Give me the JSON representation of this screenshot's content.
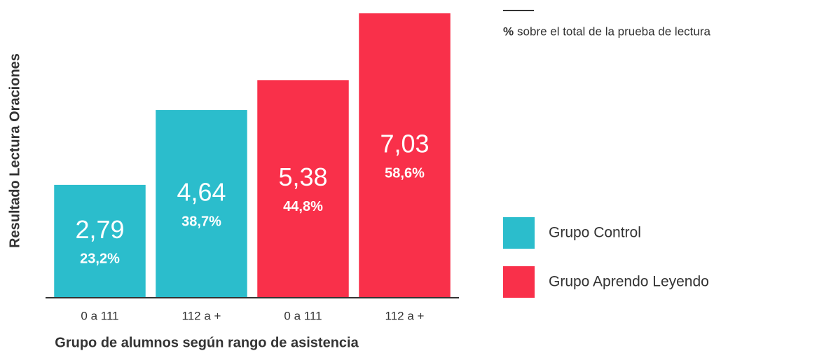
{
  "chart_data": {
    "type": "bar",
    "y_label": "Resultado Lectura Oraciones",
    "x_label": "Grupo de alumnos según rango de asistencia",
    "categories": [
      "0 a 111",
      "112 a +",
      "0 a 111",
      "112 a +"
    ],
    "series": [
      {
        "name": "Grupo Control",
        "color": "#2bbdcc",
        "values": [
          2.79,
          4.64,
          null,
          null
        ],
        "value_labels": [
          "2,79",
          "4,64",
          null,
          null
        ],
        "percents": [
          23.2,
          38.7,
          null,
          null
        ],
        "percent_labels": [
          "23,2%",
          "38,7%",
          null,
          null
        ]
      },
      {
        "name": "Grupo Aprendo Leyendo",
        "color": "#f9304a",
        "values": [
          null,
          null,
          5.38,
          7.03
        ],
        "value_labels": [
          null,
          null,
          "5,38",
          "7,03"
        ],
        "percents": [
          null,
          null,
          44.8,
          58.6
        ],
        "percent_labels": [
          null,
          null,
          "44,8%",
          "58,6%"
        ]
      }
    ],
    "note": {
      "symbol": "%",
      "text": "sobre el total de la prueba de lectura"
    },
    "ylim": [
      0,
      7.1
    ]
  }
}
